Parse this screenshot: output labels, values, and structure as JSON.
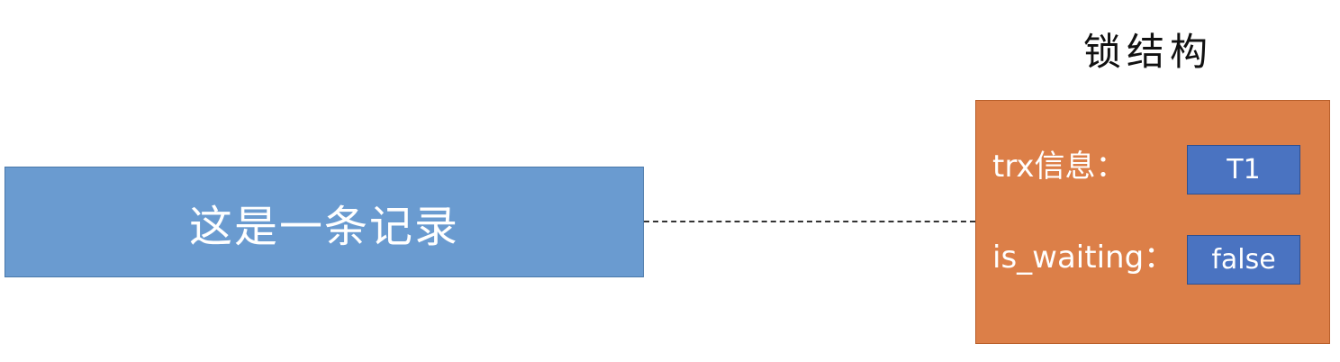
{
  "record": {
    "label": "这是一条记录"
  },
  "lock": {
    "title": "锁结构",
    "fields": [
      {
        "label": "trx信息：",
        "value": "T1"
      },
      {
        "label": "is_waiting：",
        "value": "false"
      }
    ]
  },
  "colors": {
    "record_fill": "#6a9bd0",
    "lock_fill": "#dc7f48",
    "value_fill": "#4a73c1"
  }
}
